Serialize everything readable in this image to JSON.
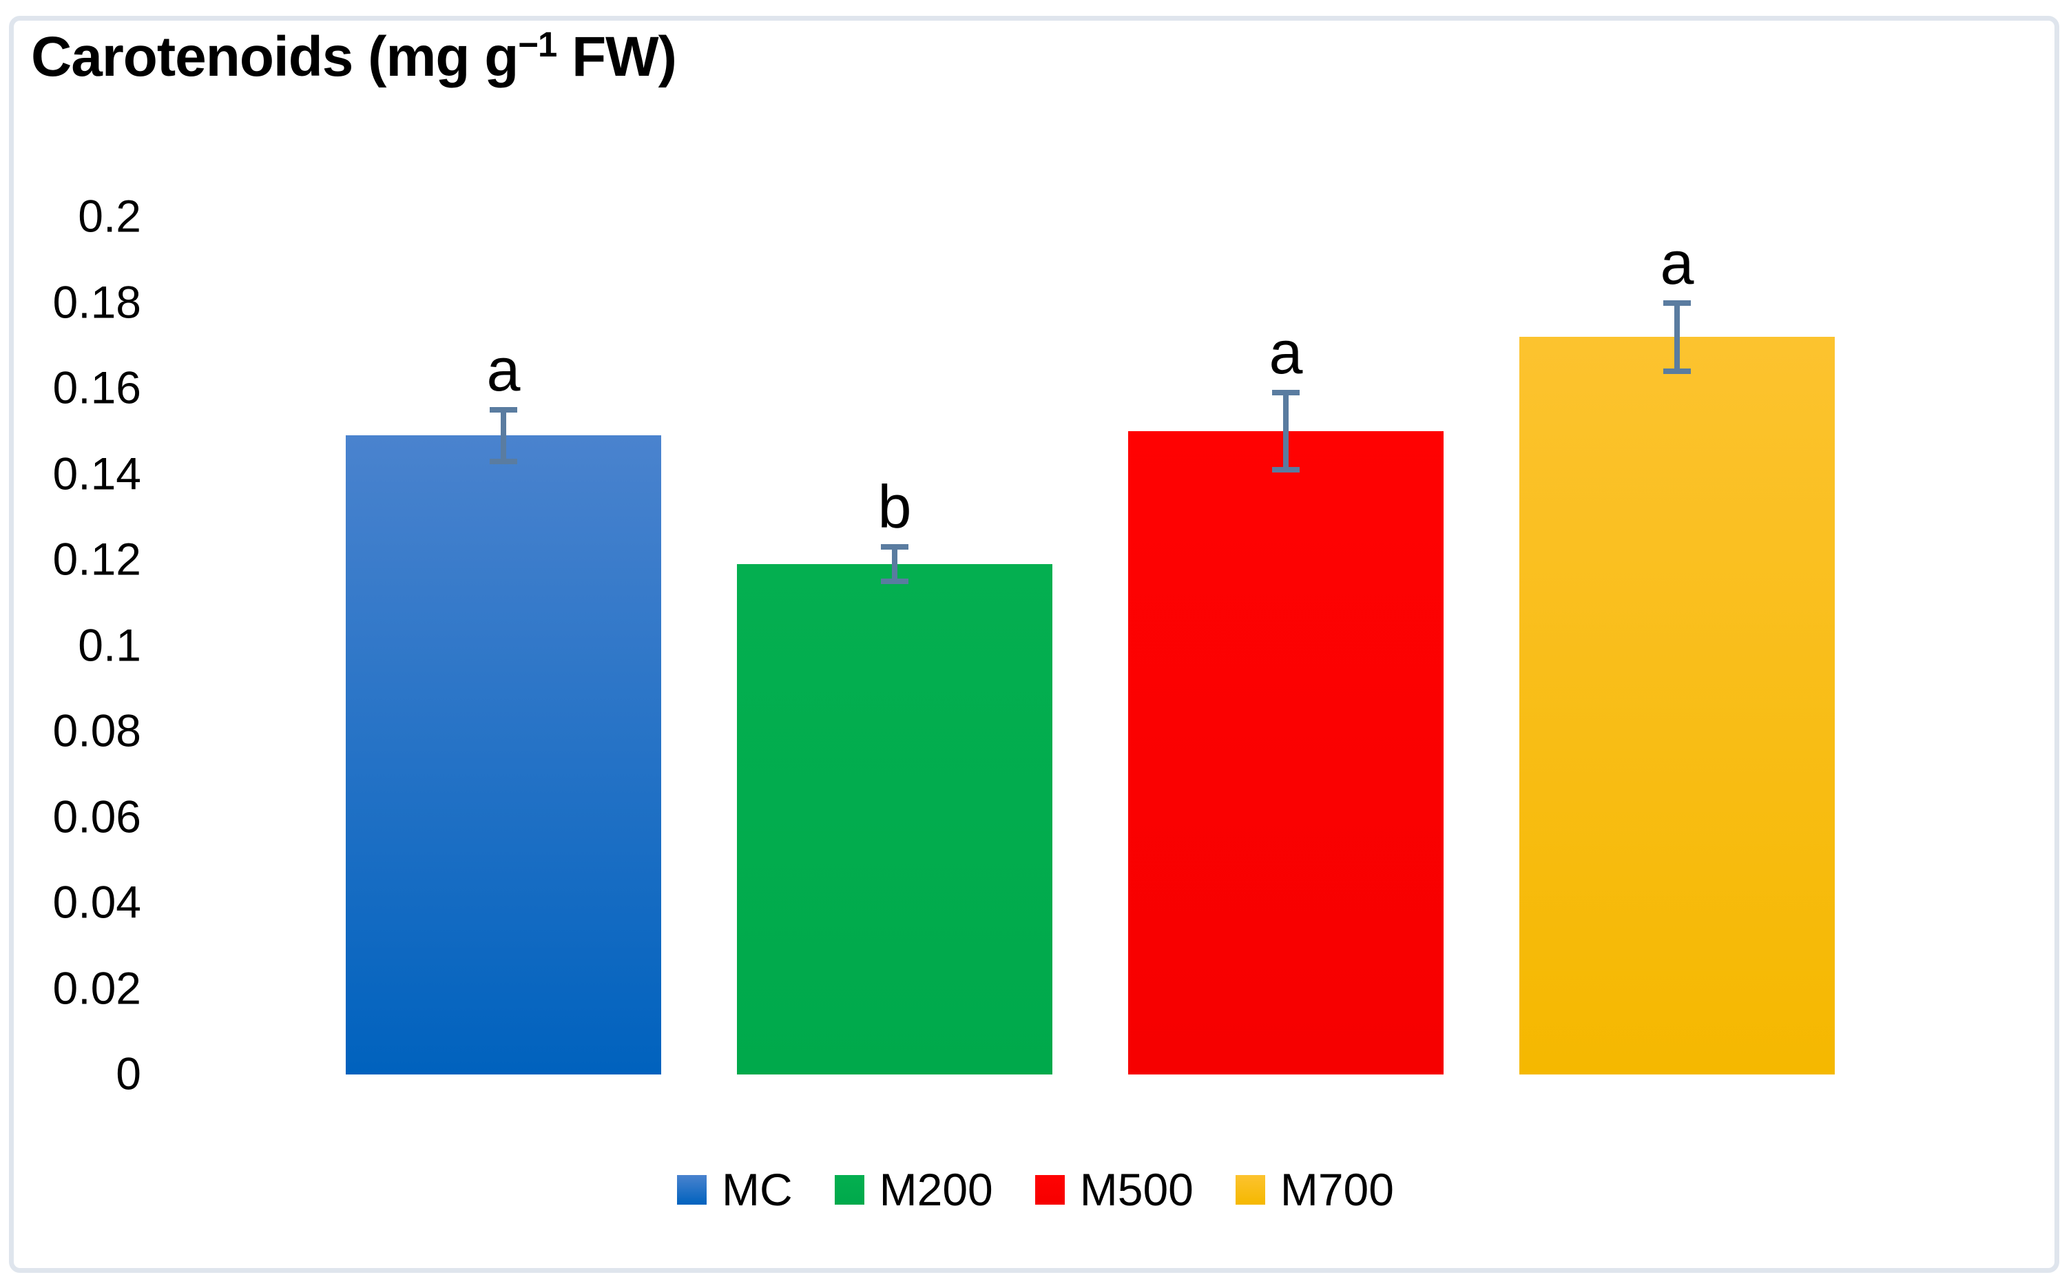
{
  "frame": {
    "border_color": "#DFE5ED"
  },
  "chart_data": {
    "type": "bar",
    "title_full": "Carotenoids (mg g−1 FW)",
    "title": {
      "prefix": "Carotenoids (mg g",
      "superscript": "−1",
      "suffix": " FW)"
    },
    "categories": [
      "MC",
      "M200",
      "M500",
      "M700"
    ],
    "values": [
      0.149,
      0.119,
      0.15,
      0.172
    ],
    "error_low": [
      0.143,
      0.115,
      0.141,
      0.164
    ],
    "error_high": [
      0.155,
      0.123,
      0.159,
      0.18
    ],
    "sig_letters": [
      "a",
      "b",
      "a",
      "a"
    ],
    "ylabel": "",
    "xlabel": "",
    "ylim": [
      0,
      0.2
    ],
    "y_tick_step": 0.02,
    "y_ticks": [
      "0.2",
      "0.18",
      "0.16",
      "0.14",
      "0.12",
      "0.1",
      "0.08",
      "0.06",
      "0.04",
      "0.02",
      "0"
    ],
    "grid": false,
    "axis_lines": false,
    "legend_position": "bottom-center",
    "legend": [
      "MC",
      "M200",
      "M500",
      "M700"
    ],
    "series_colors": [
      {
        "name": "MC",
        "top": "#4A83CE",
        "bottom": "#0062BE"
      },
      {
        "name": "M200",
        "top": "#04AF50",
        "bottom": "#00A94B"
      },
      {
        "name": "M500",
        "top": "#FF0202",
        "bottom": "#F60000"
      },
      {
        "name": "M700",
        "top": "#FCC32F",
        "bottom": "#F5B800"
      }
    ],
    "error_bar_color": "#5A7CA0",
    "text_color": "#000000"
  }
}
